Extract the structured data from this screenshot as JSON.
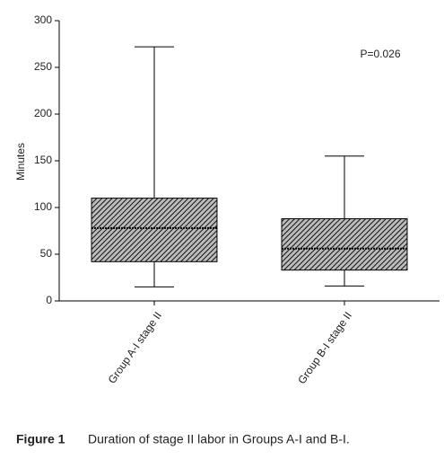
{
  "chart_data": {
    "type": "box",
    "y_label": "Minutes",
    "annotation": "P=0.026",
    "categories": [
      "Group A-I stage II",
      "Group B-I stage II"
    ],
    "boxes": [
      {
        "min": 15,
        "q1": 42,
        "median": 78,
        "q3": 110,
        "max": 272
      },
      {
        "min": 16,
        "q1": 33,
        "median": 56,
        "q3": 88,
        "max": 155
      }
    ],
    "ylim": [
      0,
      300
    ],
    "yticks": [
      0,
      50,
      100,
      150,
      200,
      250,
      300
    ],
    "color": "#555555"
  },
  "caption": {
    "label": "Figure 1",
    "text": "Duration of stage II labor in Groups A-I and B-I."
  }
}
